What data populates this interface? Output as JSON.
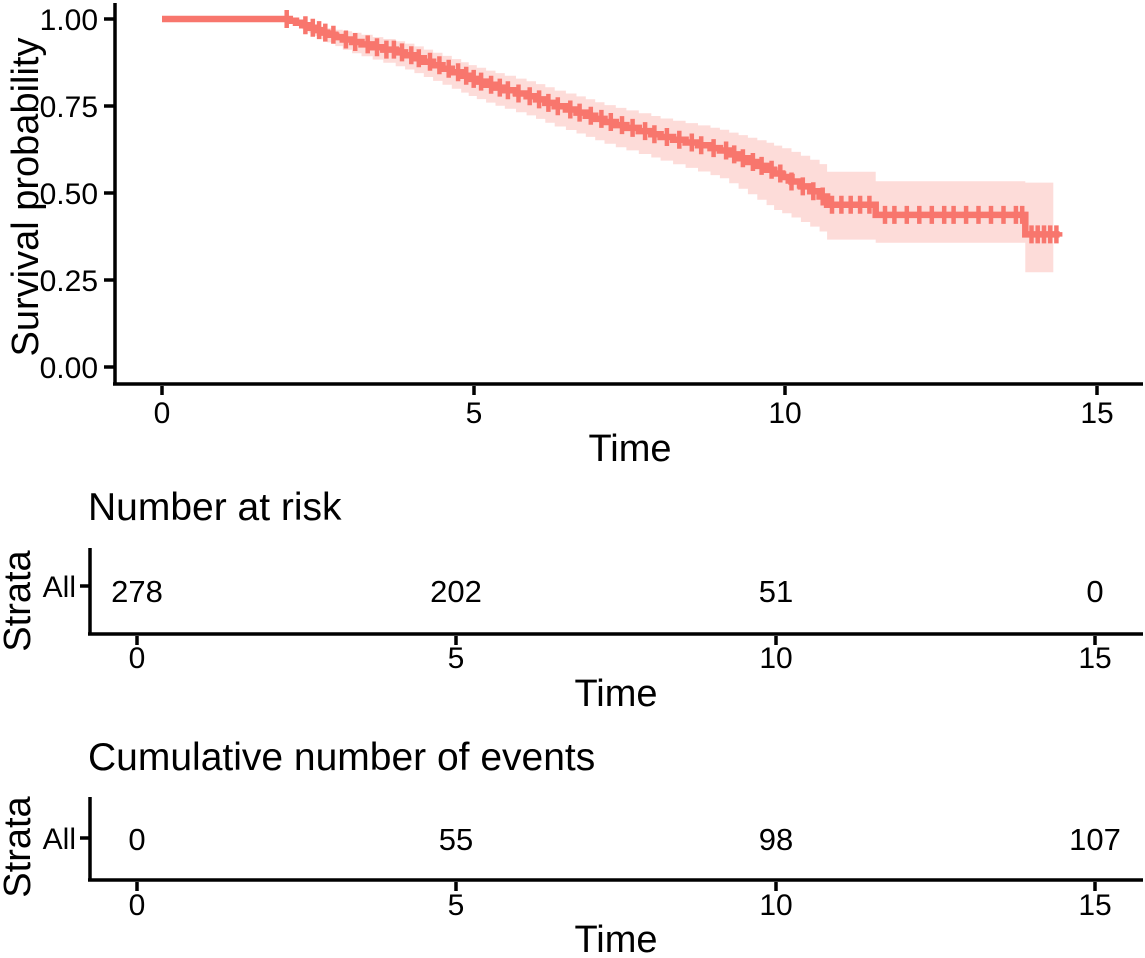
{
  "figure": {
    "colors": {
      "curve": "#F8766D",
      "ci_fill": "rgba(248,118,109,0.26)",
      "strata": "#F8766D",
      "axis": "#000000",
      "text": "#000000"
    },
    "main_plot": {
      "ylabel": "Survival probability",
      "xlabel": "Time",
      "y_ticks": [
        "1.00",
        "0.75",
        "0.50",
        "0.25",
        "0.00"
      ],
      "x_ticks": [
        "0",
        "5",
        "10",
        "15"
      ]
    },
    "risk_table": {
      "title": "Number at risk",
      "strata_label": "Strata",
      "row_label": "All",
      "values": [
        "278",
        "202",
        "51",
        "0"
      ],
      "x_ticks": [
        "0",
        "5",
        "10",
        "15"
      ],
      "xlabel": "Time"
    },
    "events_table": {
      "title": "Cumulative number of events",
      "strata_label": "Strata",
      "row_label": "All",
      "values": [
        "0",
        "55",
        "98",
        "107"
      ],
      "x_ticks": [
        "0",
        "5",
        "10",
        "15"
      ],
      "xlabel": "Time"
    }
  },
  "chart_data": {
    "type": "line",
    "subtype": "kaplan-meier-survival",
    "title": "",
    "xlabel": "Time",
    "ylabel": "Survival probability",
    "xlim": [
      0,
      15.8
    ],
    "ylim": [
      0,
      1
    ],
    "x_ticks": [
      0,
      5,
      10,
      15
    ],
    "y_ticks": [
      0.0,
      0.25,
      0.5,
      0.75,
      1.0
    ],
    "grid": false,
    "legend_position": "none",
    "strata": [
      "All"
    ],
    "stratum_color": "#F8766D",
    "confidence_interval_shown": true,
    "survival_steps": [
      [
        0,
        1
      ],
      [
        2.05,
        0.995
      ],
      [
        2.15,
        0.989
      ],
      [
        2.25,
        0.982
      ],
      [
        2.35,
        0.975
      ],
      [
        2.45,
        0.968
      ],
      [
        2.55,
        0.961
      ],
      [
        2.65,
        0.955
      ],
      [
        2.78,
        0.948
      ],
      [
        2.9,
        0.941
      ],
      [
        3.05,
        0.934
      ],
      [
        3.2,
        0.927
      ],
      [
        3.38,
        0.919
      ],
      [
        3.55,
        0.912
      ],
      [
        3.75,
        0.904
      ],
      [
        3.9,
        0.896
      ],
      [
        4.05,
        0.887
      ],
      [
        4.2,
        0.877
      ],
      [
        4.35,
        0.867
      ],
      [
        4.5,
        0.857
      ],
      [
        4.65,
        0.847
      ],
      [
        4.8,
        0.837
      ],
      [
        4.92,
        0.828
      ],
      [
        5.05,
        0.82
      ],
      [
        5.2,
        0.811
      ],
      [
        5.35,
        0.803
      ],
      [
        5.5,
        0.795
      ],
      [
        5.68,
        0.786
      ],
      [
        5.85,
        0.778
      ],
      [
        6.0,
        0.769
      ],
      [
        6.15,
        0.759
      ],
      [
        6.3,
        0.749
      ],
      [
        6.48,
        0.74
      ],
      [
        6.65,
        0.731
      ],
      [
        6.8,
        0.722
      ],
      [
        6.95,
        0.713
      ],
      [
        7.1,
        0.704
      ],
      [
        7.28,
        0.695
      ],
      [
        7.45,
        0.687
      ],
      [
        7.65,
        0.678
      ],
      [
        7.85,
        0.669
      ],
      [
        8.0,
        0.661
      ],
      [
        8.2,
        0.653
      ],
      [
        8.4,
        0.645
      ],
      [
        8.6,
        0.637
      ],
      [
        8.8,
        0.629
      ],
      [
        8.95,
        0.622
      ],
      [
        9.1,
        0.611
      ],
      [
        9.25,
        0.6
      ],
      [
        9.4,
        0.589
      ],
      [
        9.55,
        0.578
      ],
      [
        9.7,
        0.567
      ],
      [
        9.82,
        0.556
      ],
      [
        9.95,
        0.546
      ],
      [
        10.1,
        0.533
      ],
      [
        10.25,
        0.519
      ],
      [
        10.4,
        0.505
      ],
      [
        10.55,
        0.49
      ],
      [
        10.67,
        0.466
      ],
      [
        11.45,
        0.437
      ],
      [
        13.85,
        0.381
      ]
    ],
    "curve_end_time": 14.4,
    "censor_times": [
      2.0,
      2.3,
      2.42,
      2.52,
      2.62,
      2.75,
      2.95,
      3.1,
      3.3,
      3.45,
      3.6,
      3.72,
      3.85,
      4.0,
      4.12,
      4.3,
      4.45,
      4.6,
      4.75,
      4.88,
      5.0,
      5.12,
      5.28,
      5.42,
      5.55,
      5.72,
      5.9,
      6.05,
      6.2,
      6.35,
      6.55,
      6.7,
      6.88,
      7.05,
      7.2,
      7.38,
      7.55,
      7.75,
      7.9,
      8.1,
      8.3,
      8.5,
      8.65,
      8.85,
      9.05,
      9.18,
      9.32,
      9.48,
      9.62,
      9.78,
      9.92,
      10.1,
      10.28,
      10.45,
      10.6,
      10.75,
      10.9,
      11.05,
      11.2,
      11.35,
      11.6,
      11.75,
      11.95,
      12.15,
      12.35,
      12.55,
      12.7,
      12.9,
      13.1,
      13.3,
      13.5,
      13.7,
      13.8,
      13.95,
      14.05,
      14.15,
      14.25,
      14.35
    ],
    "ci_band_start": 2.0,
    "ci_band_end": 14.3,
    "ci_upper_halfwidth": [
      [
        2,
        0.004
      ],
      [
        2.5,
        0.015
      ],
      [
        3,
        0.026
      ],
      [
        4,
        0.034
      ],
      [
        5,
        0.04
      ],
      [
        6,
        0.044
      ],
      [
        7,
        0.048
      ],
      [
        8,
        0.053
      ],
      [
        9,
        0.06
      ],
      [
        9.8,
        0.08
      ],
      [
        10.67,
        0.095
      ],
      [
        11.45,
        0.097
      ],
      [
        13.85,
        0.097
      ]
    ],
    "ci_lower_halfwidth": [
      [
        2,
        0.005
      ],
      [
        2.5,
        0.018
      ],
      [
        3,
        0.032
      ],
      [
        4,
        0.042
      ],
      [
        5,
        0.05
      ],
      [
        6,
        0.056
      ],
      [
        7,
        0.062
      ],
      [
        8,
        0.068
      ],
      [
        9,
        0.08
      ],
      [
        9.8,
        0.105
      ],
      [
        10.67,
        0.1
      ],
      [
        11.45,
        0.08
      ],
      [
        13.85,
        0.08
      ]
    ],
    "ci_final_segment": {
      "from": 13.84,
      "upper": 0.53,
      "lower": 0.272
    },
    "number_at_risk": {
      "times": [
        0,
        5,
        10,
        15
      ],
      "All": [
        278,
        202,
        51,
        0
      ]
    },
    "cumulative_events": {
      "times": [
        0,
        5,
        10,
        15
      ],
      "All": [
        0,
        55,
        98,
        107
      ]
    }
  }
}
